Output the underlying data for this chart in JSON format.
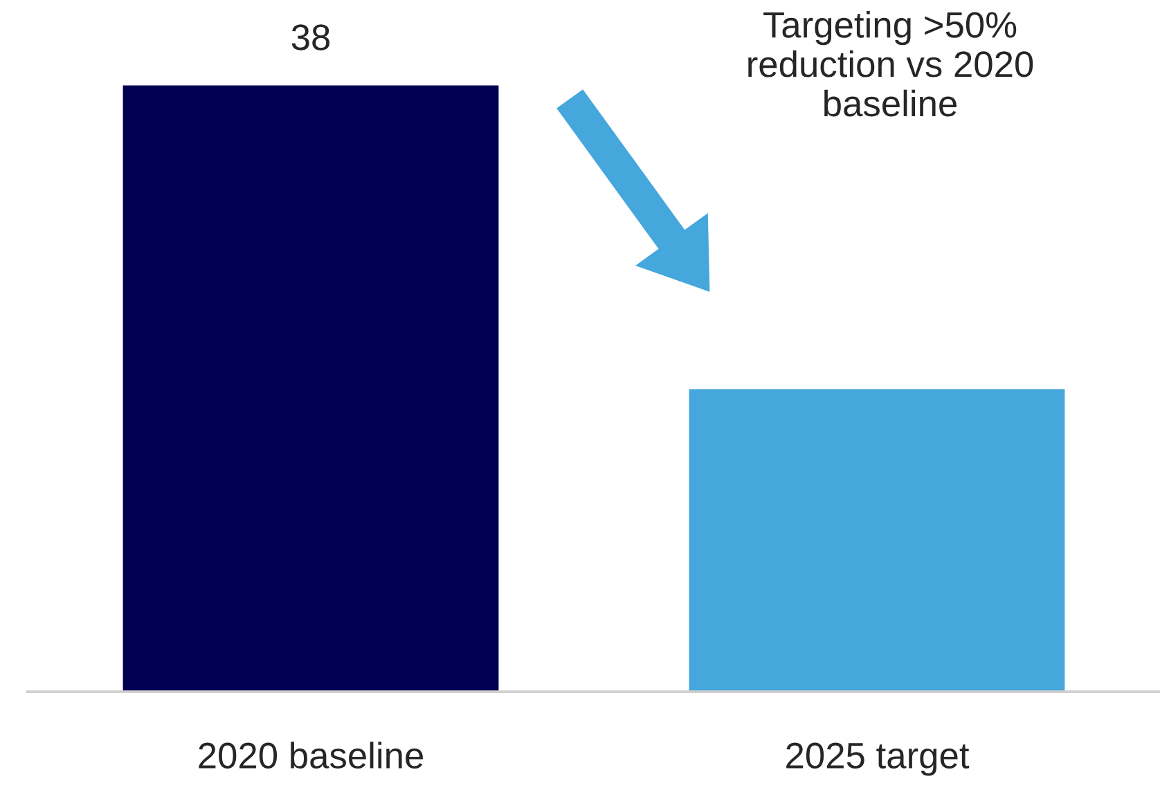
{
  "chart_data": {
    "type": "bar",
    "categories": [
      "2020 baseline",
      "2025 target"
    ],
    "values": [
      38,
      19
    ],
    "colors": [
      "#000050",
      "#45a7dc"
    ],
    "value_labels": [
      "38",
      null
    ],
    "annotations": [
      "Targeting >50%\nreduction vs 2020\nbaseline"
    ],
    "grid": false,
    "legend": false
  }
}
